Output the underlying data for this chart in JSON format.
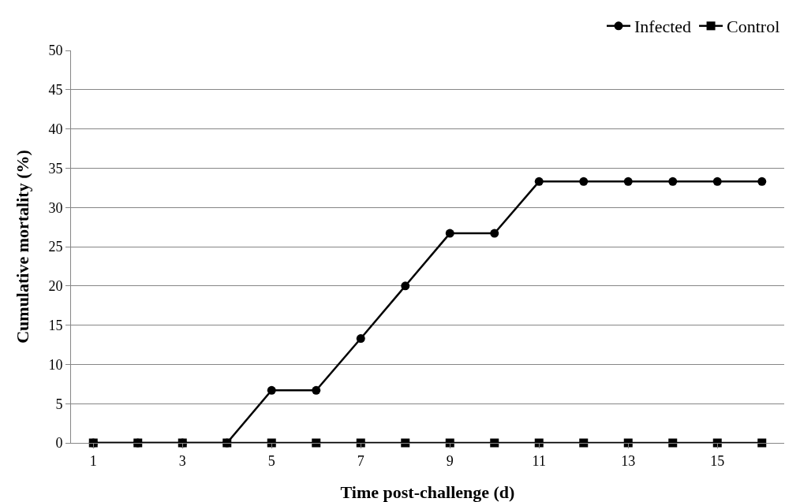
{
  "chart_data": {
    "type": "line",
    "xlabel": "Time post-challenge (d)",
    "ylabel": "Cumulative mortality (%)",
    "x": [
      1,
      2,
      3,
      4,
      5,
      6,
      7,
      8,
      9,
      10,
      11,
      12,
      13,
      14,
      15,
      16
    ],
    "xlim": [
      0.5,
      16.5
    ],
    "xticks": [
      1,
      3,
      5,
      7,
      9,
      11,
      13,
      15
    ],
    "series": [
      {
        "name": "Infected",
        "color": "#000000",
        "marker": "circle",
        "values": [
          0,
          0,
          0,
          0,
          6.7,
          6.7,
          13.3,
          20,
          26.7,
          26.7,
          33.3,
          33.3,
          33.3,
          33.3,
          33.3,
          33.3
        ]
      },
      {
        "name": "Control",
        "color": "#000000",
        "marker": "square",
        "values": [
          0,
          0,
          0,
          0,
          0,
          0,
          0,
          0,
          0,
          0,
          0,
          0,
          0,
          0,
          0,
          0
        ]
      }
    ],
    "ylim": [
      0,
      50
    ],
    "yticks": [
      0,
      5,
      10,
      15,
      20,
      25,
      30,
      35,
      40,
      45,
      50
    ],
    "grid": "y",
    "legend": "top right",
    "line_style": "solid"
  }
}
